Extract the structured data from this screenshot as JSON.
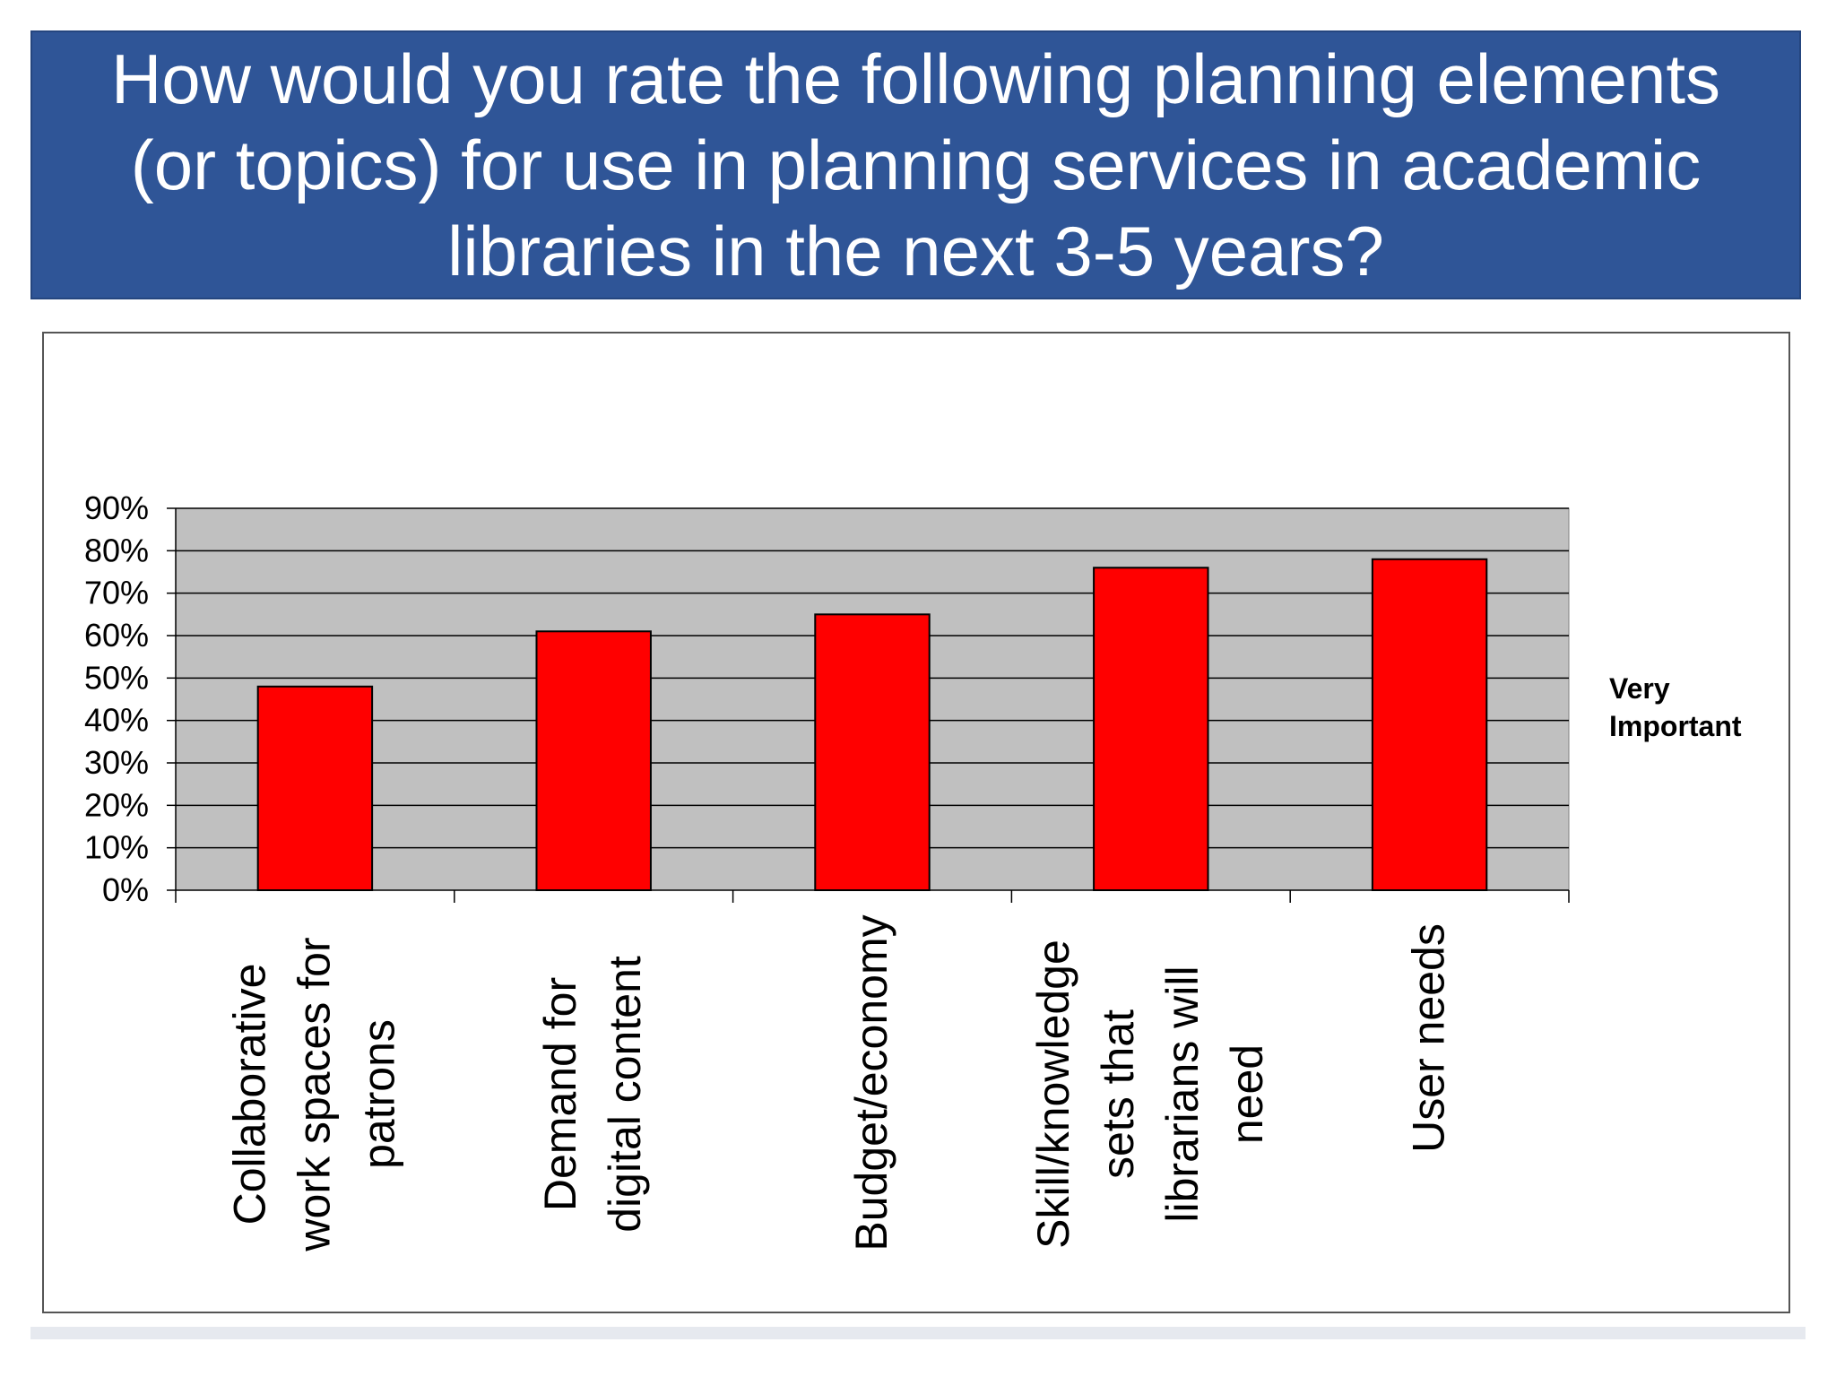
{
  "slide": {
    "title": "How would you rate the following planning elements (or topics) for use in planning services in academic libraries in the next 3-5 years?"
  },
  "chart_data": {
    "type": "bar",
    "title": "",
    "xlabel": "",
    "ylabel": "",
    "categories": [
      "Collaborative work spaces for patrons",
      "Demand for digital content",
      "Budget/economy",
      "Skill/knowledge sets that librarians will need",
      "User needs"
    ],
    "category_lines": [
      [
        "Collaborative",
        "work spaces for",
        "patrons"
      ],
      [
        "Demand for",
        "digital content"
      ],
      [
        "Budget/economy"
      ],
      [
        "Skill/knowledge",
        "sets that",
        "librarians will",
        "need"
      ],
      [
        "User needs"
      ]
    ],
    "series": [
      {
        "name": "Very Important",
        "values": [
          48,
          61,
          65,
          76,
          78
        ],
        "color": "#ff0000"
      }
    ],
    "ylim": [
      0,
      90
    ],
    "yticks": [
      "0%",
      "10%",
      "20%",
      "30%",
      "40%",
      "50%",
      "60%",
      "70%",
      "80%",
      "90%"
    ],
    "grid": true,
    "plot_background": "#c0c0c0",
    "legend": {
      "placement": "right",
      "lines": [
        "Very",
        "Important"
      ]
    }
  }
}
